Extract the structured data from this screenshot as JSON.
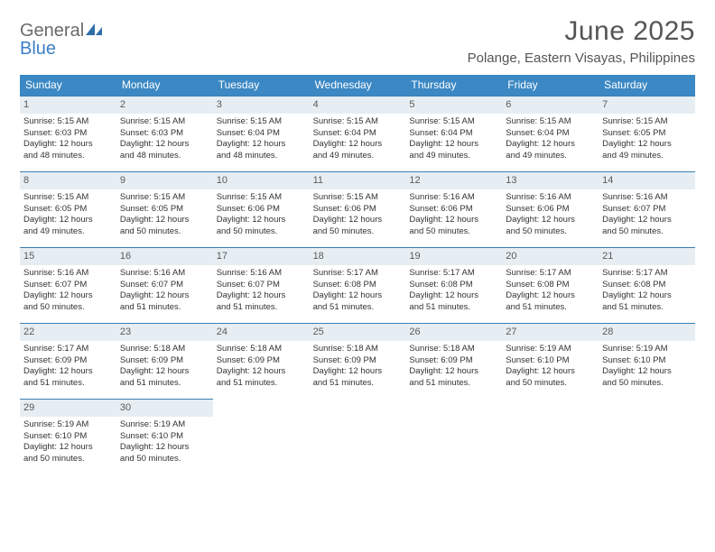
{
  "logo": {
    "textGeneral": "General",
    "textBlue": "Blue"
  },
  "title": "June 2025",
  "location": "Polange, Eastern Visayas, Philippines",
  "colors": {
    "headerBg": "#3b88c4",
    "headerText": "#ffffff",
    "dayNumBg": "#e7eef3",
    "dayNumText": "#5a5a5a",
    "cellBorder": "#3b7fb3",
    "bodyText": "#333333",
    "titleText": "#555555",
    "logoGray": "#6a6a6a",
    "logoBlue": "#3b7fc4",
    "pageBg": "#ffffff"
  },
  "typography": {
    "titleFontSize": 30,
    "locationFontSize": 15,
    "headerFontSize": 12,
    "dayNumFontSize": 11,
    "cellFontSize": 9.5
  },
  "layout": {
    "columns": 7,
    "rows": 5,
    "cellMinHeight": 84
  },
  "weekdays": [
    "Sunday",
    "Monday",
    "Tuesday",
    "Wednesday",
    "Thursday",
    "Friday",
    "Saturday"
  ],
  "days": [
    {
      "n": "1",
      "sunrise": "Sunrise: 5:15 AM",
      "sunset": "Sunset: 6:03 PM",
      "day1": "Daylight: 12 hours",
      "day2": "and 48 minutes."
    },
    {
      "n": "2",
      "sunrise": "Sunrise: 5:15 AM",
      "sunset": "Sunset: 6:03 PM",
      "day1": "Daylight: 12 hours",
      "day2": "and 48 minutes."
    },
    {
      "n": "3",
      "sunrise": "Sunrise: 5:15 AM",
      "sunset": "Sunset: 6:04 PM",
      "day1": "Daylight: 12 hours",
      "day2": "and 48 minutes."
    },
    {
      "n": "4",
      "sunrise": "Sunrise: 5:15 AM",
      "sunset": "Sunset: 6:04 PM",
      "day1": "Daylight: 12 hours",
      "day2": "and 49 minutes."
    },
    {
      "n": "5",
      "sunrise": "Sunrise: 5:15 AM",
      "sunset": "Sunset: 6:04 PM",
      "day1": "Daylight: 12 hours",
      "day2": "and 49 minutes."
    },
    {
      "n": "6",
      "sunrise": "Sunrise: 5:15 AM",
      "sunset": "Sunset: 6:04 PM",
      "day1": "Daylight: 12 hours",
      "day2": "and 49 minutes."
    },
    {
      "n": "7",
      "sunrise": "Sunrise: 5:15 AM",
      "sunset": "Sunset: 6:05 PM",
      "day1": "Daylight: 12 hours",
      "day2": "and 49 minutes."
    },
    {
      "n": "8",
      "sunrise": "Sunrise: 5:15 AM",
      "sunset": "Sunset: 6:05 PM",
      "day1": "Daylight: 12 hours",
      "day2": "and 49 minutes."
    },
    {
      "n": "9",
      "sunrise": "Sunrise: 5:15 AM",
      "sunset": "Sunset: 6:05 PM",
      "day1": "Daylight: 12 hours",
      "day2": "and 50 minutes."
    },
    {
      "n": "10",
      "sunrise": "Sunrise: 5:15 AM",
      "sunset": "Sunset: 6:06 PM",
      "day1": "Daylight: 12 hours",
      "day2": "and 50 minutes."
    },
    {
      "n": "11",
      "sunrise": "Sunrise: 5:15 AM",
      "sunset": "Sunset: 6:06 PM",
      "day1": "Daylight: 12 hours",
      "day2": "and 50 minutes."
    },
    {
      "n": "12",
      "sunrise": "Sunrise: 5:16 AM",
      "sunset": "Sunset: 6:06 PM",
      "day1": "Daylight: 12 hours",
      "day2": "and 50 minutes."
    },
    {
      "n": "13",
      "sunrise": "Sunrise: 5:16 AM",
      "sunset": "Sunset: 6:06 PM",
      "day1": "Daylight: 12 hours",
      "day2": "and 50 minutes."
    },
    {
      "n": "14",
      "sunrise": "Sunrise: 5:16 AM",
      "sunset": "Sunset: 6:07 PM",
      "day1": "Daylight: 12 hours",
      "day2": "and 50 minutes."
    },
    {
      "n": "15",
      "sunrise": "Sunrise: 5:16 AM",
      "sunset": "Sunset: 6:07 PM",
      "day1": "Daylight: 12 hours",
      "day2": "and 50 minutes."
    },
    {
      "n": "16",
      "sunrise": "Sunrise: 5:16 AM",
      "sunset": "Sunset: 6:07 PM",
      "day1": "Daylight: 12 hours",
      "day2": "and 51 minutes."
    },
    {
      "n": "17",
      "sunrise": "Sunrise: 5:16 AM",
      "sunset": "Sunset: 6:07 PM",
      "day1": "Daylight: 12 hours",
      "day2": "and 51 minutes."
    },
    {
      "n": "18",
      "sunrise": "Sunrise: 5:17 AM",
      "sunset": "Sunset: 6:08 PM",
      "day1": "Daylight: 12 hours",
      "day2": "and 51 minutes."
    },
    {
      "n": "19",
      "sunrise": "Sunrise: 5:17 AM",
      "sunset": "Sunset: 6:08 PM",
      "day1": "Daylight: 12 hours",
      "day2": "and 51 minutes."
    },
    {
      "n": "20",
      "sunrise": "Sunrise: 5:17 AM",
      "sunset": "Sunset: 6:08 PM",
      "day1": "Daylight: 12 hours",
      "day2": "and 51 minutes."
    },
    {
      "n": "21",
      "sunrise": "Sunrise: 5:17 AM",
      "sunset": "Sunset: 6:08 PM",
      "day1": "Daylight: 12 hours",
      "day2": "and 51 minutes."
    },
    {
      "n": "22",
      "sunrise": "Sunrise: 5:17 AM",
      "sunset": "Sunset: 6:09 PM",
      "day1": "Daylight: 12 hours",
      "day2": "and 51 minutes."
    },
    {
      "n": "23",
      "sunrise": "Sunrise: 5:18 AM",
      "sunset": "Sunset: 6:09 PM",
      "day1": "Daylight: 12 hours",
      "day2": "and 51 minutes."
    },
    {
      "n": "24",
      "sunrise": "Sunrise: 5:18 AM",
      "sunset": "Sunset: 6:09 PM",
      "day1": "Daylight: 12 hours",
      "day2": "and 51 minutes."
    },
    {
      "n": "25",
      "sunrise": "Sunrise: 5:18 AM",
      "sunset": "Sunset: 6:09 PM",
      "day1": "Daylight: 12 hours",
      "day2": "and 51 minutes."
    },
    {
      "n": "26",
      "sunrise": "Sunrise: 5:18 AM",
      "sunset": "Sunset: 6:09 PM",
      "day1": "Daylight: 12 hours",
      "day2": "and 51 minutes."
    },
    {
      "n": "27",
      "sunrise": "Sunrise: 5:19 AM",
      "sunset": "Sunset: 6:10 PM",
      "day1": "Daylight: 12 hours",
      "day2": "and 50 minutes."
    },
    {
      "n": "28",
      "sunrise": "Sunrise: 5:19 AM",
      "sunset": "Sunset: 6:10 PM",
      "day1": "Daylight: 12 hours",
      "day2": "and 50 minutes."
    },
    {
      "n": "29",
      "sunrise": "Sunrise: 5:19 AM",
      "sunset": "Sunset: 6:10 PM",
      "day1": "Daylight: 12 hours",
      "day2": "and 50 minutes."
    },
    {
      "n": "30",
      "sunrise": "Sunrise: 5:19 AM",
      "sunset": "Sunset: 6:10 PM",
      "day1": "Daylight: 12 hours",
      "day2": "and 50 minutes."
    }
  ]
}
